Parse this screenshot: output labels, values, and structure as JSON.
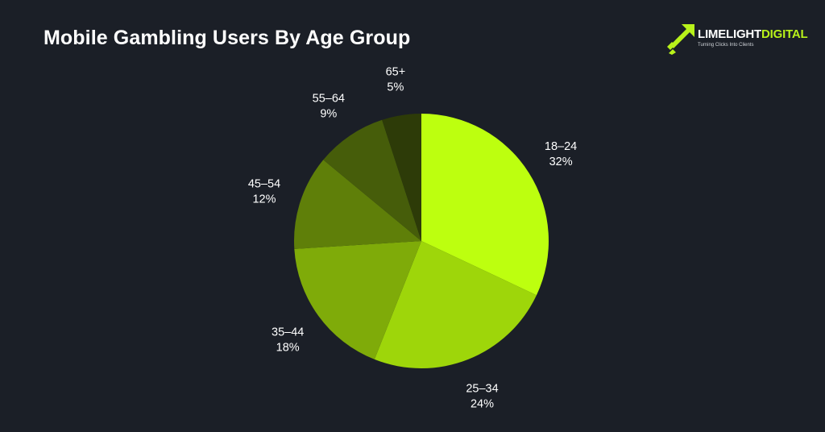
{
  "title": "Mobile Gambling Users By Age Group",
  "logo": {
    "word1": "LIMELIGHT",
    "word2": "DIGITAL",
    "tagline": "Turning Clicks Into Clients"
  },
  "chart_data": {
    "type": "pie",
    "title": "Mobile Gambling Users By Age Group",
    "start_angle_deg": 0,
    "direction": "clockwise",
    "slices": [
      {
        "label": "18–24",
        "value": 32,
        "display": "32%",
        "color": "#bdff0f"
      },
      {
        "label": "25–34",
        "value": 24,
        "display": "24%",
        "color": "#9ed60a"
      },
      {
        "label": "35–44",
        "value": 18,
        "display": "18%",
        "color": "#7fab09"
      },
      {
        "label": "45–54",
        "value": 12,
        "display": "12%",
        "color": "#5f7f09"
      },
      {
        "label": "55–64",
        "value": 9,
        "display": "9%",
        "color": "#465d0a"
      },
      {
        "label": "65+",
        "value": 5,
        "display": "5%",
        "color": "#2d3b08"
      }
    ]
  }
}
